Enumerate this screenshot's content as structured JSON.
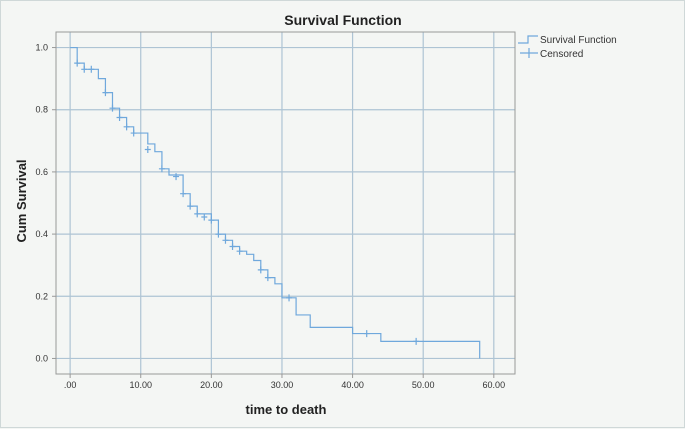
{
  "chart_data": {
    "type": "line",
    "title": "Survival Function",
    "xlabel": "time to death",
    "ylabel": "Cum Survival",
    "xlim": [
      -2,
      63
    ],
    "ylim": [
      -0.05,
      1.05
    ],
    "x_ticks": [
      0,
      10,
      20,
      30,
      40,
      50,
      60
    ],
    "x_tick_labels": [
      ".00",
      "10.00",
      "20.00",
      "30.00",
      "40.00",
      "50.00",
      "60.00"
    ],
    "y_ticks": [
      0,
      0.2,
      0.4,
      0.6,
      0.8,
      1.0
    ],
    "y_tick_labels": [
      "0.0",
      "0.2",
      "0.4",
      "0.6",
      "0.8",
      "1.0"
    ],
    "grid": true,
    "legend_position": "top-right",
    "colors": {
      "series": "#6fa8dc",
      "grid": "#aec4d4",
      "axis": "#999999"
    },
    "series": [
      {
        "name": "Survival Function",
        "kind": "step",
        "points": [
          [
            0,
            1.0
          ],
          [
            1,
            0.95
          ],
          [
            2,
            0.93
          ],
          [
            4,
            0.9
          ],
          [
            5,
            0.855
          ],
          [
            6,
            0.805
          ],
          [
            7,
            0.775
          ],
          [
            8,
            0.745
          ],
          [
            9,
            0.725
          ],
          [
            11,
            0.69
          ],
          [
            12,
            0.665
          ],
          [
            13,
            0.61
          ],
          [
            14,
            0.59
          ],
          [
            16,
            0.53
          ],
          [
            17,
            0.49
          ],
          [
            18,
            0.465
          ],
          [
            20,
            0.445
          ],
          [
            21,
            0.4
          ],
          [
            22,
            0.38
          ],
          [
            23,
            0.36
          ],
          [
            24,
            0.345
          ],
          [
            25,
            0.335
          ],
          [
            26,
            0.315
          ],
          [
            27,
            0.285
          ],
          [
            28,
            0.26
          ],
          [
            29,
            0.24
          ],
          [
            30,
            0.195
          ],
          [
            32,
            0.14
          ],
          [
            34,
            0.1
          ],
          [
            40,
            0.08
          ],
          [
            44,
            0.055
          ],
          [
            58,
            0.0
          ]
        ]
      },
      {
        "name": "Censored",
        "kind": "marker",
        "points": [
          [
            1,
            0.95
          ],
          [
            2,
            0.93
          ],
          [
            3,
            0.93
          ],
          [
            5,
            0.855
          ],
          [
            6,
            0.805
          ],
          [
            7,
            0.775
          ],
          [
            8,
            0.745
          ],
          [
            9,
            0.725
          ],
          [
            11,
            0.672
          ],
          [
            13,
            0.61
          ],
          [
            15,
            0.585
          ],
          [
            16,
            0.53
          ],
          [
            17,
            0.49
          ],
          [
            18,
            0.465
          ],
          [
            19,
            0.455
          ],
          [
            20,
            0.445
          ],
          [
            21,
            0.4
          ],
          [
            22,
            0.38
          ],
          [
            23,
            0.36
          ],
          [
            24,
            0.345
          ],
          [
            27,
            0.285
          ],
          [
            28,
            0.26
          ],
          [
            31,
            0.195
          ],
          [
            42,
            0.08
          ],
          [
            49,
            0.055
          ]
        ]
      }
    ]
  }
}
